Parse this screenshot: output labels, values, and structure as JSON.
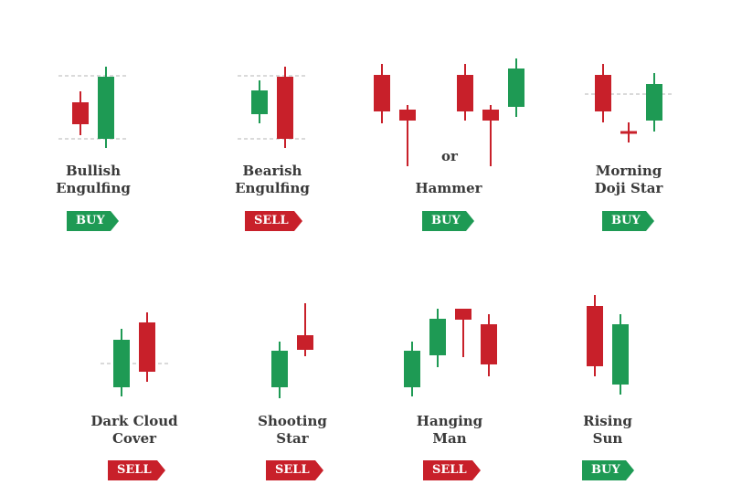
{
  "colors": {
    "bull": "#1e9a54",
    "bear": "#c8202a",
    "text": "#3a3a3a",
    "guide": "#b5b5b5"
  },
  "patterns": [
    {
      "name_line1": "Bullish",
      "name_line2": "Engulfing",
      "signal": "BUY"
    },
    {
      "name_line1": "Bearish",
      "name_line2": "Engulfing",
      "signal": "SELL"
    },
    {
      "name_line1": "Hammer",
      "name_line2": "",
      "signal": "BUY"
    },
    {
      "name_line1": "Morning",
      "name_line2": "Doji Star",
      "signal": "BUY"
    },
    {
      "name_line1": "Dark Cloud",
      "name_line2": "Cover",
      "signal": "SELL"
    },
    {
      "name_line1": "Shooting",
      "name_line2": "Star",
      "signal": "SELL"
    },
    {
      "name_line1": "Hanging",
      "name_line2": "Man",
      "signal": "SELL"
    },
    {
      "name_line1": "Rising",
      "name_line2": "Sun",
      "signal": "BUY"
    }
  ],
  "or_text": "or"
}
